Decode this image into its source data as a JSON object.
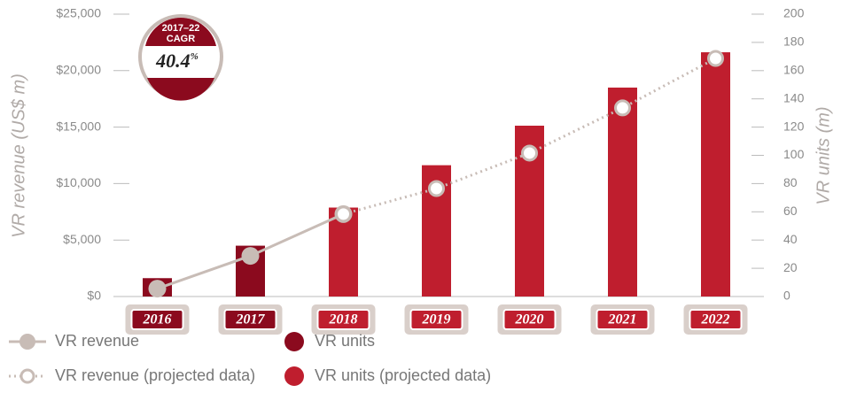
{
  "chart_data": {
    "type": "bar-line",
    "categories": [
      "2016",
      "2017",
      "2018",
      "2019",
      "2020",
      "2021",
      "2022"
    ],
    "series": [
      {
        "name": "VR revenue",
        "type": "line",
        "color": "#c8bcb6",
        "values": [
          700,
          3600,
          7300,
          null,
          null,
          null,
          null
        ]
      },
      {
        "name": "VR units",
        "type": "bar",
        "axis": "y2",
        "color": "#8b0a1e",
        "values": [
          13,
          36,
          null,
          null,
          null,
          null,
          null
        ]
      },
      {
        "name": "VR revenue (projected data)",
        "type": "line",
        "dashed": true,
        "color": "#c8bcb6",
        "values": [
          null,
          null,
          7300,
          9560,
          12700,
          16700,
          21080
        ]
      },
      {
        "name": "VR units (projected data)",
        "type": "bar",
        "axis": "y2",
        "color": "#bf1e2e",
        "values": [
          null,
          null,
          63,
          93,
          121,
          148,
          173
        ]
      }
    ],
    "ylabel": "VR revenue (US$ m)",
    "y2label": "VR units (m)",
    "ylim": [
      0,
      25000
    ],
    "yticks": [
      {
        "value": 0,
        "label": "$0"
      },
      {
        "value": 5000,
        "label": "$5,000"
      },
      {
        "value": 10000,
        "label": "$10,000"
      },
      {
        "value": 15000,
        "label": "$15,000"
      },
      {
        "value": 20000,
        "label": "$20,000"
      },
      {
        "value": 25000,
        "label": "$25,000"
      }
    ],
    "y2lim": [
      0,
      200
    ],
    "y2ticks": [
      0,
      20,
      40,
      60,
      80,
      100,
      120,
      140,
      160,
      180,
      200
    ],
    "badge": {
      "period": "2017–22",
      "label": "CAGR",
      "value": "40.4",
      "unit": "%"
    }
  }
}
